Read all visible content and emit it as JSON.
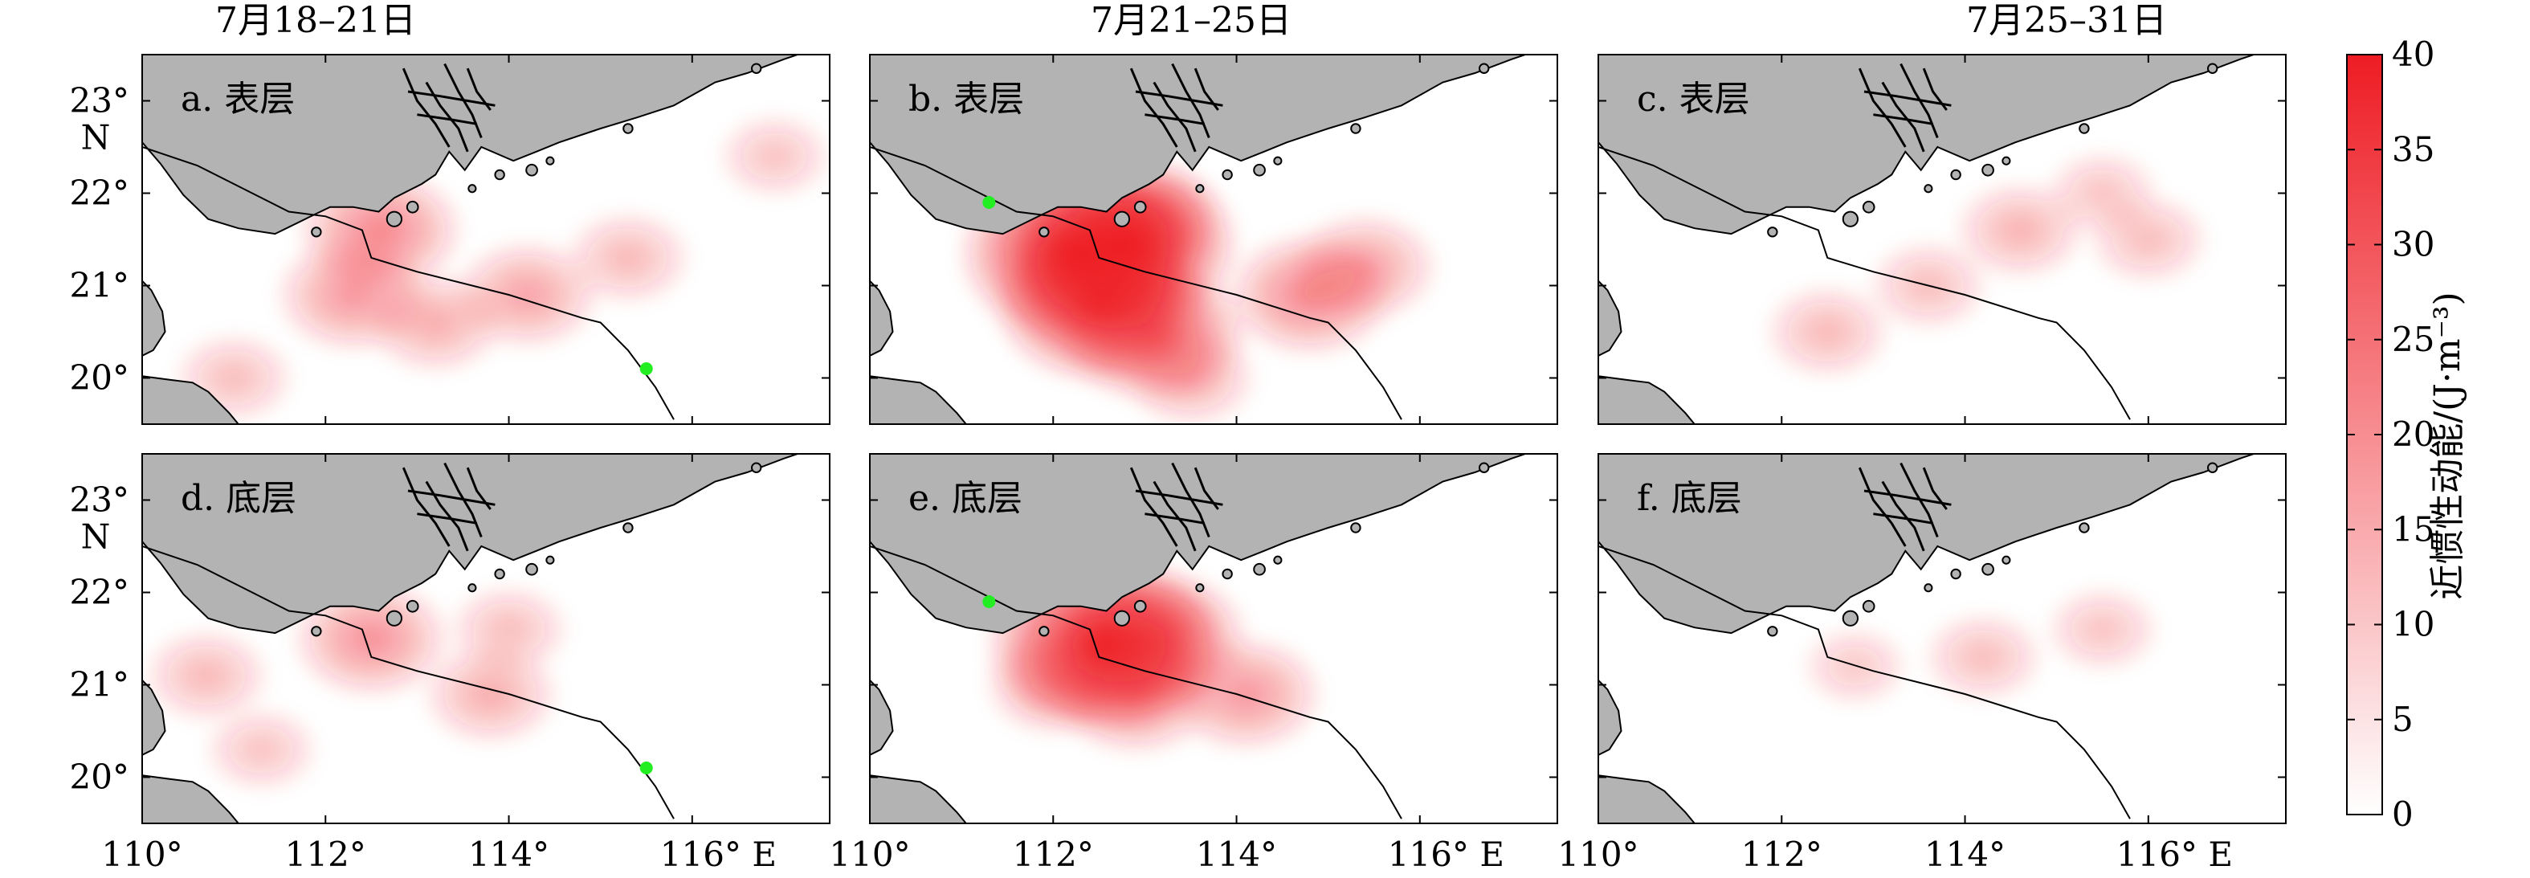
{
  "chart_data": {
    "type": "heatmap",
    "column_titles": [
      "7月18–21日",
      "7月21–25日",
      "7月25–31日"
    ],
    "x_axis": {
      "lim": [
        110,
        117.5
      ],
      "ticks": [
        110,
        112,
        114,
        116
      ],
      "tick_labels": [
        "110°",
        "112°",
        "114°",
        "116° E"
      ],
      "tick_labels_col1": [
        "110°",
        "112°",
        "114°",
        "116° E"
      ],
      "tick_labels_col2": [
        "110°",
        "112°",
        "114°",
        "116° E"
      ]
    },
    "y_axis": {
      "lim": [
        19.5,
        23.5
      ],
      "ticks": [
        20,
        21,
        22,
        23
      ],
      "tick_labels": [
        "20°",
        "21°",
        "22°",
        "23°"
      ],
      "unit_label": "N"
    },
    "colorbar": {
      "label": "近惯性动能/(J·m⁻³)",
      "range": [
        0,
        40
      ],
      "ticks": [
        0,
        5,
        10,
        15,
        20,
        25,
        30,
        35,
        40
      ],
      "low_color": "#ffffff",
      "high_color": "#ee1c24"
    },
    "colors": {
      "land": "#b3b3b3",
      "track": "#000000",
      "marker": "#22ee22",
      "energy": "#ee1c24"
    },
    "panels": [
      {
        "label": "a. 表层",
        "period": "7月18–21日",
        "layer": "表层",
        "marker": {
          "lon": 115.5,
          "lat": 20.1
        },
        "hotspots": [
          {
            "lon": 112.6,
            "lat": 21.6,
            "value": 15
          },
          {
            "lon": 112.3,
            "lat": 20.9,
            "value": 12
          },
          {
            "lon": 114.2,
            "lat": 20.9,
            "value": 10
          },
          {
            "lon": 113.2,
            "lat": 20.6,
            "value": 8
          },
          {
            "lon": 115.3,
            "lat": 21.3,
            "value": 6
          },
          {
            "lon": 116.9,
            "lat": 22.4,
            "value": 4
          },
          {
            "lon": 111.0,
            "lat": 20.0,
            "value": 5
          }
        ]
      },
      {
        "label": "b. 表层",
        "period": "7月21–25日",
        "layer": "表层",
        "marker": {
          "lon": 111.3,
          "lat": 21.9
        },
        "hotspots": [
          {
            "lon": 112.25,
            "lat": 21.35,
            "value": 40
          },
          {
            "lon": 112.8,
            "lat": 21.45,
            "value": 36
          },
          {
            "lon": 112.5,
            "lat": 20.8,
            "value": 30
          },
          {
            "lon": 113.1,
            "lat": 20.5,
            "value": 22
          },
          {
            "lon": 114.8,
            "lat": 20.9,
            "value": 15
          },
          {
            "lon": 115.4,
            "lat": 21.2,
            "value": 10
          },
          {
            "lon": 113.0,
            "lat": 21.75,
            "value": 12
          },
          {
            "lon": 113.5,
            "lat": 20.0,
            "value": 7
          }
        ]
      },
      {
        "label": "c. 表层",
        "period": "7月25–31日",
        "layer": "表层",
        "marker": null,
        "hotspots": [
          {
            "lon": 114.6,
            "lat": 21.6,
            "value": 7
          },
          {
            "lon": 112.5,
            "lat": 20.5,
            "value": 6
          },
          {
            "lon": 113.6,
            "lat": 21.0,
            "value": 5
          },
          {
            "lon": 116.0,
            "lat": 21.5,
            "value": 5
          },
          {
            "lon": 115.5,
            "lat": 22.0,
            "value": 4
          }
        ]
      },
      {
        "label": "d. 底层",
        "period": "7月18–21日",
        "layer": "底层",
        "marker": {
          "lon": 115.5,
          "lat": 20.1
        },
        "hotspots": [
          {
            "lon": 112.5,
            "lat": 21.5,
            "value": 13
          },
          {
            "lon": 113.8,
            "lat": 20.9,
            "value": 8
          },
          {
            "lon": 110.7,
            "lat": 21.1,
            "value": 6
          },
          {
            "lon": 114.0,
            "lat": 21.6,
            "value": 5
          },
          {
            "lon": 111.3,
            "lat": 20.3,
            "value": 4
          }
        ]
      },
      {
        "label": "e. 底层",
        "period": "7月21–25日",
        "layer": "底层",
        "marker": {
          "lon": 111.3,
          "lat": 21.9
        },
        "hotspots": [
          {
            "lon": 112.55,
            "lat": 21.45,
            "value": 40
          },
          {
            "lon": 113.1,
            "lat": 21.5,
            "value": 22
          },
          {
            "lon": 112.9,
            "lat": 20.9,
            "value": 14
          },
          {
            "lon": 114.1,
            "lat": 20.9,
            "value": 12
          },
          {
            "lon": 112.0,
            "lat": 21.0,
            "value": 8
          }
        ]
      },
      {
        "label": "f. 底层",
        "period": "7月25–31日",
        "layer": "底层",
        "marker": null,
        "hotspots": [
          {
            "lon": 114.2,
            "lat": 21.3,
            "value": 5
          },
          {
            "lon": 115.5,
            "lat": 21.6,
            "value": 4
          },
          {
            "lon": 112.8,
            "lat": 21.2,
            "value": 3
          }
        ]
      }
    ],
    "typhoon_track": [
      {
        "lon": 110.0,
        "lat": 22.5
      },
      {
        "lon": 110.6,
        "lat": 22.3
      },
      {
        "lon": 111.2,
        "lat": 22.0
      },
      {
        "lon": 111.6,
        "lat": 21.8
      },
      {
        "lon": 112.0,
        "lat": 21.75
      },
      {
        "lon": 112.4,
        "lat": 21.6
      },
      {
        "lon": 112.5,
        "lat": 21.3
      },
      {
        "lon": 113.0,
        "lat": 21.15
      },
      {
        "lon": 114.0,
        "lat": 20.9
      },
      {
        "lon": 114.8,
        "lat": 20.65
      },
      {
        "lon": 115.0,
        "lat": 20.6
      },
      {
        "lon": 115.3,
        "lat": 20.3
      },
      {
        "lon": 115.6,
        "lat": 19.9
      },
      {
        "lon": 115.8,
        "lat": 19.55
      }
    ]
  }
}
